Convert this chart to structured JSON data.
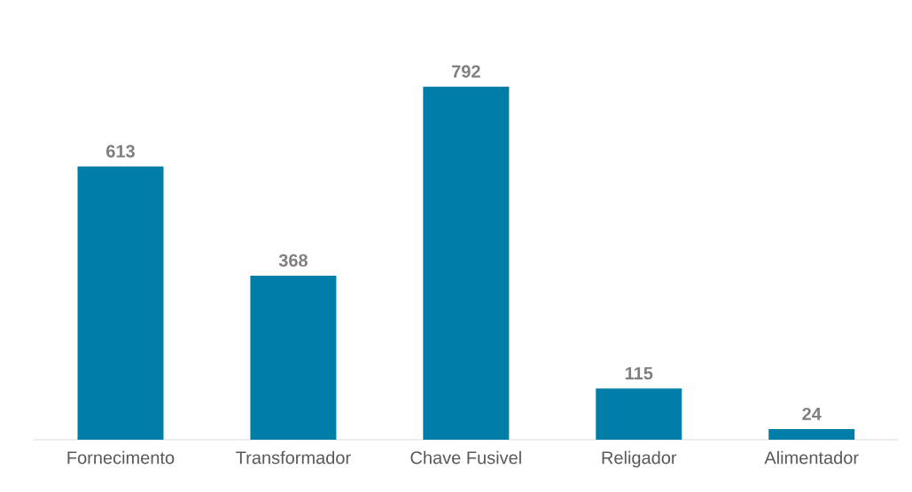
{
  "chart_data": {
    "type": "bar",
    "categories": [
      "Fornecimento",
      "Transformador",
      "Chave Fusivel",
      "Religador",
      "Alimentador"
    ],
    "values": [
      613,
      368,
      792,
      115,
      24
    ],
    "color": "#007ea7",
    "data_labels": true
  }
}
